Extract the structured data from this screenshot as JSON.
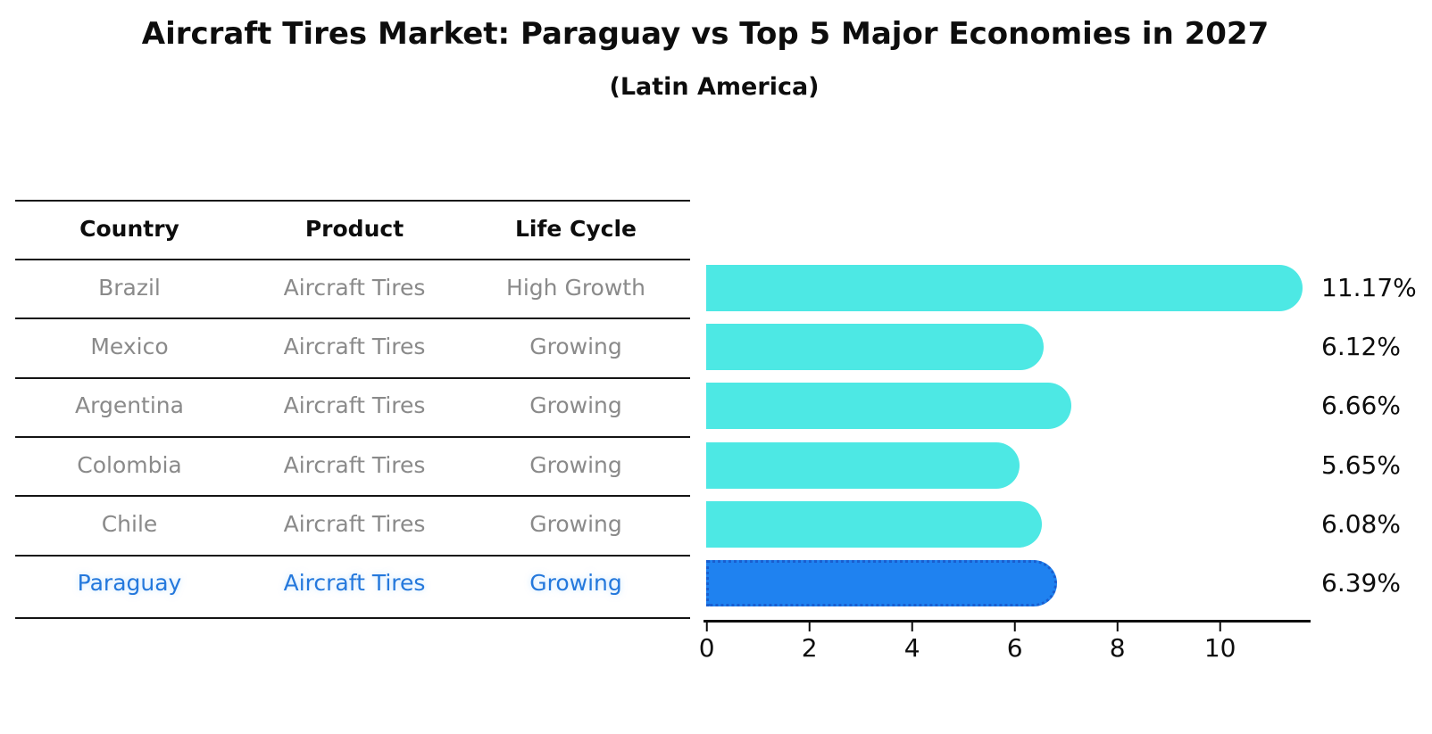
{
  "title": "Aircraft Tires Market: Paraguay vs Top 5 Major Economies in 2027",
  "subtitle": "(Latin America)",
  "table": {
    "headers": [
      "Country",
      "Product",
      "Life Cycle"
    ],
    "rows": [
      {
        "country": "Brazil",
        "product": "Aircraft Tires",
        "life_cycle": "High Growth",
        "highlighted": false
      },
      {
        "country": "Mexico",
        "product": "Aircraft Tires",
        "life_cycle": "Growing",
        "highlighted": false
      },
      {
        "country": "Argentina",
        "product": "Aircraft Tires",
        "life_cycle": "Growing",
        "highlighted": false
      },
      {
        "country": "Colombia",
        "product": "Aircraft Tires",
        "life_cycle": "Growing",
        "highlighted": false
      },
      {
        "country": "Chile",
        "product": "Aircraft Tires",
        "life_cycle": "Growing",
        "highlighted": false
      },
      {
        "country": "Paraguay",
        "product": "Aircraft Tires",
        "life_cycle": "Growing",
        "highlighted": true
      }
    ]
  },
  "chart_data": {
    "type": "bar",
    "orientation": "horizontal",
    "categories": [
      "Brazil",
      "Mexico",
      "Argentina",
      "Colombia",
      "Chile",
      "Paraguay"
    ],
    "values": [
      11.17,
      6.12,
      6.66,
      5.65,
      6.08,
      6.39
    ],
    "value_labels": [
      "11.17%",
      "6.12%",
      "6.66%",
      "5.65%",
      "6.08%",
      "6.39%"
    ],
    "highlight_index": 5,
    "xticks": [
      "0",
      "2",
      "4",
      "6",
      "8",
      "10"
    ],
    "xtick_values": [
      0,
      2,
      4,
      6,
      8,
      10
    ],
    "xlim": [
      0,
      11.76
    ],
    "grid": false,
    "legend": "none",
    "bar_color": "#4de8e4",
    "highlight_bar_color": "#1f82f0",
    "highlight_border_color": "#1a5ecf",
    "highlight_text_color": "#2478dc",
    "table_text_color": "#8a8a8a",
    "axis_color": "#0d0d0d"
  }
}
